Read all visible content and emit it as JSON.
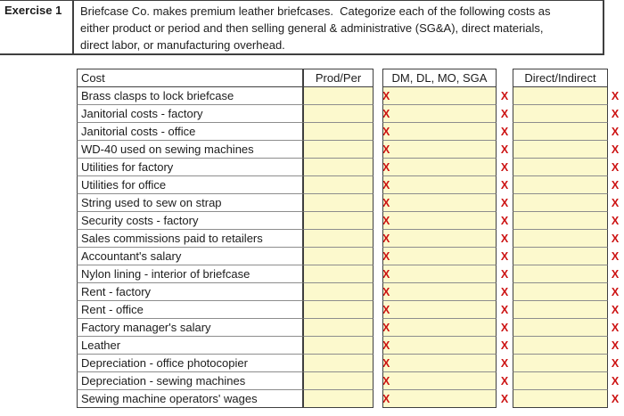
{
  "exercise": {
    "label": "Exercise 1",
    "description_lines": [
      "Briefcase Co. makes premium leather briefcases.  Categorize each of the following costs as",
      "either product or period and then selling general & administrative (SG&A), direct materials,",
      "direct labor, or manufacturing overhead."
    ]
  },
  "table": {
    "headers": {
      "cost": "Cost",
      "prod_per": "Prod/Per",
      "dm_dl_mo_sga": "DM, DL, MO, SGA",
      "direct_indirect": "Direct/Indirect"
    },
    "x_marker": "X",
    "rows": [
      {
        "cost": "Brass clasps to lock briefcase"
      },
      {
        "cost": "Janitorial costs - factory"
      },
      {
        "cost": "Janitorial costs - office"
      },
      {
        "cost": "WD-40 used on sewing machines"
      },
      {
        "cost": "Utilities for factory"
      },
      {
        "cost": "Utilities for office"
      },
      {
        "cost": "String used to sew on strap"
      },
      {
        "cost": "Security costs - factory"
      },
      {
        "cost": "Sales commissions paid to retailers"
      },
      {
        "cost": "Accountant's salary"
      },
      {
        "cost": "Nylon lining - interior of briefcase"
      },
      {
        "cost": "Rent - factory"
      },
      {
        "cost": "Rent - office"
      },
      {
        "cost": "Factory manager's salary"
      },
      {
        "cost": "Leather"
      },
      {
        "cost": "Depreciation - office photocopier"
      },
      {
        "cost": "Depreciation - sewing machines"
      },
      {
        "cost": "Sewing machine operators' wages"
      }
    ]
  },
  "colors": {
    "answer_cell_fill": "#fcf9cd",
    "x_marker_red": "#cc1111",
    "border_dark": "#3f3f3f",
    "border_light": "#8d8d8d"
  }
}
